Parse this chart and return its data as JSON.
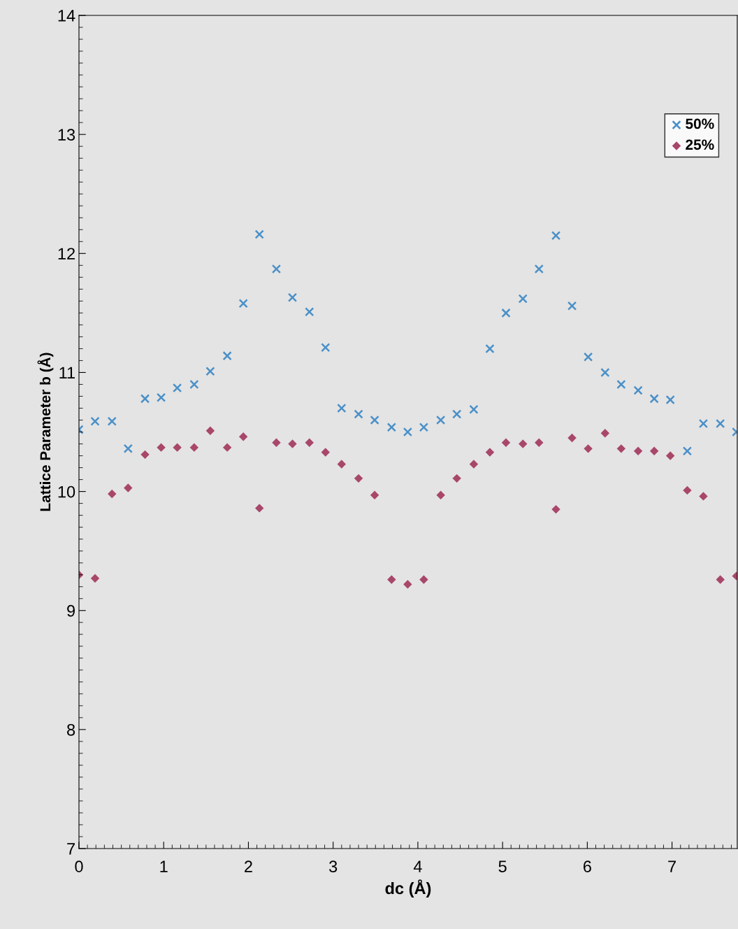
{
  "chart_data": {
    "type": "scatter",
    "xlabel": "dc (Å)",
    "ylabel": "Lattice Parameter b (Å)",
    "xlim": [
      0,
      7.77
    ],
    "xticks": [
      0,
      1,
      2,
      3,
      4,
      5,
      6,
      7
    ],
    "ylim": [
      7,
      14
    ],
    "yticks": [
      7,
      8,
      9,
      10,
      11,
      12,
      13,
      14
    ],
    "x": [
      0,
      0.19,
      0.39,
      0.58,
      0.78,
      0.97,
      1.16,
      1.36,
      1.55,
      1.75,
      1.94,
      2.13,
      2.33,
      2.52,
      2.72,
      2.91,
      3.1,
      3.3,
      3.49,
      3.69,
      3.88,
      4.07,
      4.27,
      4.46,
      4.66,
      4.85,
      5.04,
      5.24,
      5.43,
      5.63,
      5.82,
      6.01,
      6.21,
      6.4,
      6.6,
      6.79,
      6.98,
      7.18,
      7.37,
      7.57,
      7.76
    ],
    "series": [
      {
        "name": "50%",
        "color": "#4a90c8",
        "marker": "cross",
        "values": [
          10.52,
          10.59,
          10.59,
          10.36,
          10.78,
          10.79,
          10.87,
          10.9,
          11.01,
          11.14,
          11.58,
          12.16,
          11.87,
          11.63,
          11.51,
          11.21,
          10.7,
          10.65,
          10.6,
          10.54,
          10.5,
          10.54,
          10.6,
          10.65,
          10.69,
          11.2,
          11.5,
          11.62,
          11.87,
          12.15,
          11.56,
          11.13,
          11.0,
          10.9,
          10.85,
          10.78,
          10.77,
          10.34,
          10.57,
          10.57,
          10.5
        ]
      },
      {
        "name": "25%",
        "color": "#a8476a",
        "marker": "diamond",
        "values": [
          9.3,
          9.27,
          9.98,
          10.03,
          10.31,
          10.37,
          10.37,
          10.37,
          10.51,
          10.37,
          10.46,
          9.86,
          10.41,
          10.4,
          10.41,
          10.33,
          10.23,
          10.11,
          9.97,
          9.26,
          9.22,
          9.26,
          9.97,
          10.11,
          10.23,
          10.33,
          10.41,
          10.4,
          10.41,
          9.85,
          10.45,
          10.36,
          10.49,
          10.36,
          10.34,
          10.34,
          10.3,
          10.01,
          9.96,
          9.26,
          9.29
        ]
      }
    ],
    "legend": "top right",
    "grid": false
  }
}
